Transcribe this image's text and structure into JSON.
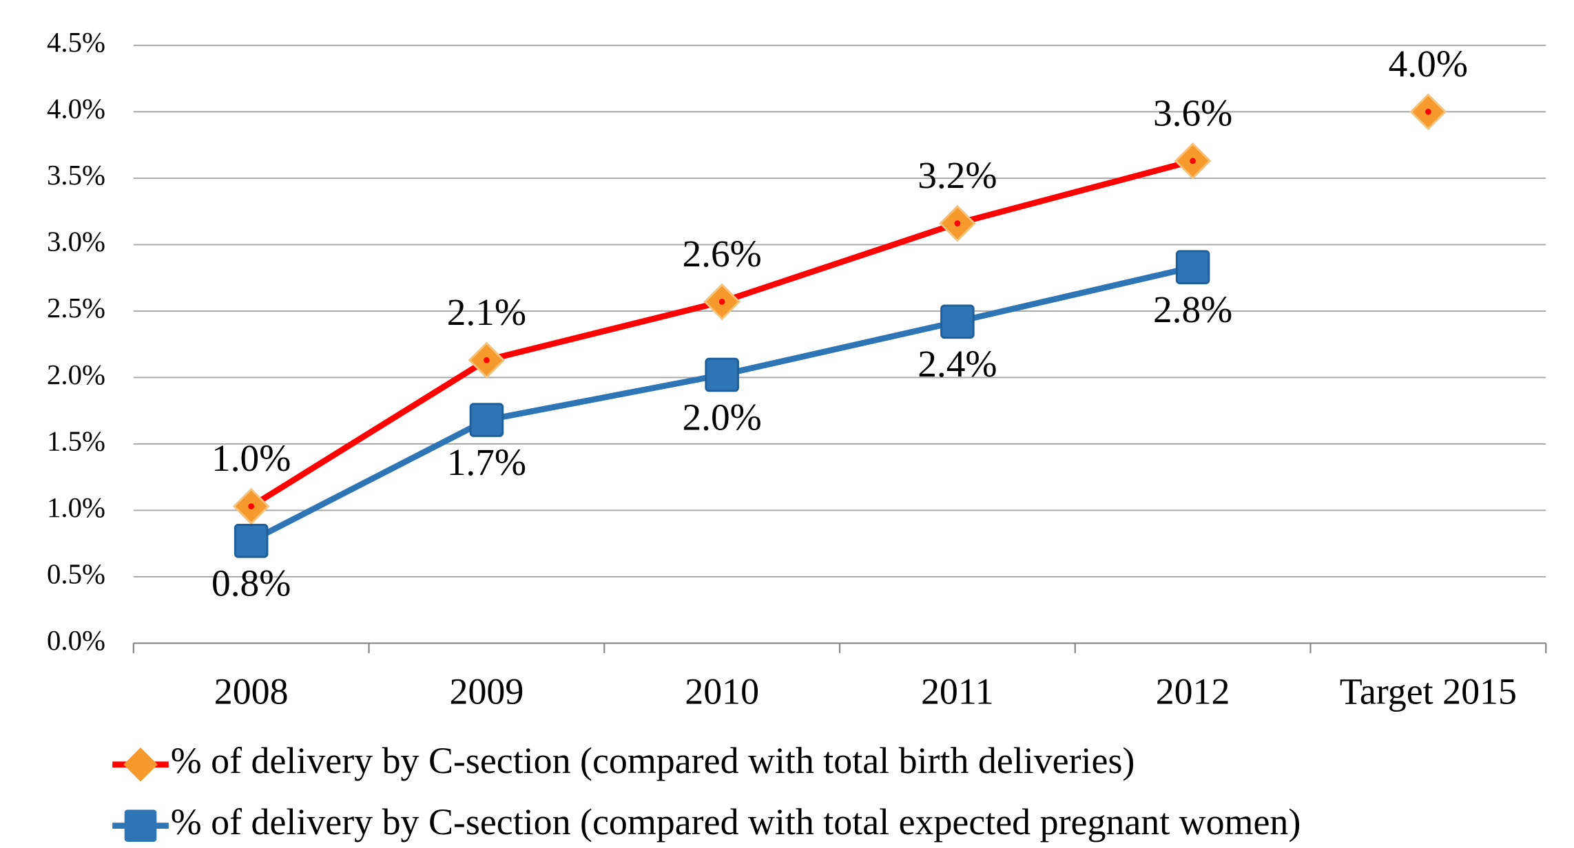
{
  "chart_data": {
    "type": "line",
    "categories": [
      "2008",
      "2009",
      "2010",
      "2011",
      "2012",
      "Target 2015"
    ],
    "series": [
      {
        "name": "% of delivery by C-section (compared with total birth deliveries)",
        "color": "#ff0000",
        "marker": "diamond",
        "marker_color": "#f79a2e",
        "unconnected_last_point": true,
        "label_position": "above",
        "values": [
          1.03,
          2.13,
          2.57,
          3.16,
          3.63,
          4.0
        ],
        "value_labels": [
          "1.0%",
          "2.1%",
          "2.6%",
          "3.2%",
          "3.6%",
          "4.0%"
        ]
      },
      {
        "name": "% of delivery by C-section (compared with total expected pregnant women)",
        "color": "#2e75b6",
        "marker": "square",
        "marker_color": "#2e75b6",
        "label_position": "below",
        "values": [
          0.77,
          1.68,
          2.02,
          2.42,
          2.83,
          null
        ],
        "value_labels": [
          "0.8%",
          "1.7%",
          "2.0%",
          "2.4%",
          "2.8%",
          null
        ]
      }
    ],
    "ylim": [
      0,
      4.5
    ],
    "yticks": [
      {
        "value": 0,
        "label": "0.0%"
      },
      {
        "value": 0.5,
        "label": "0.5%"
      },
      {
        "value": 1,
        "label": "1.0%"
      },
      {
        "value": 1.5,
        "label": "1.5%"
      },
      {
        "value": 2,
        "label": "2.0%"
      },
      {
        "value": 2.5,
        "label": "2.5%"
      },
      {
        "value": 3,
        "label": "3.0%"
      },
      {
        "value": 3.5,
        "label": "3.5%"
      },
      {
        "value": 4,
        "label": "4.0%"
      },
      {
        "value": 4.5,
        "label": "4.5%"
      }
    ],
    "grid": true,
    "legend": "bottom"
  }
}
